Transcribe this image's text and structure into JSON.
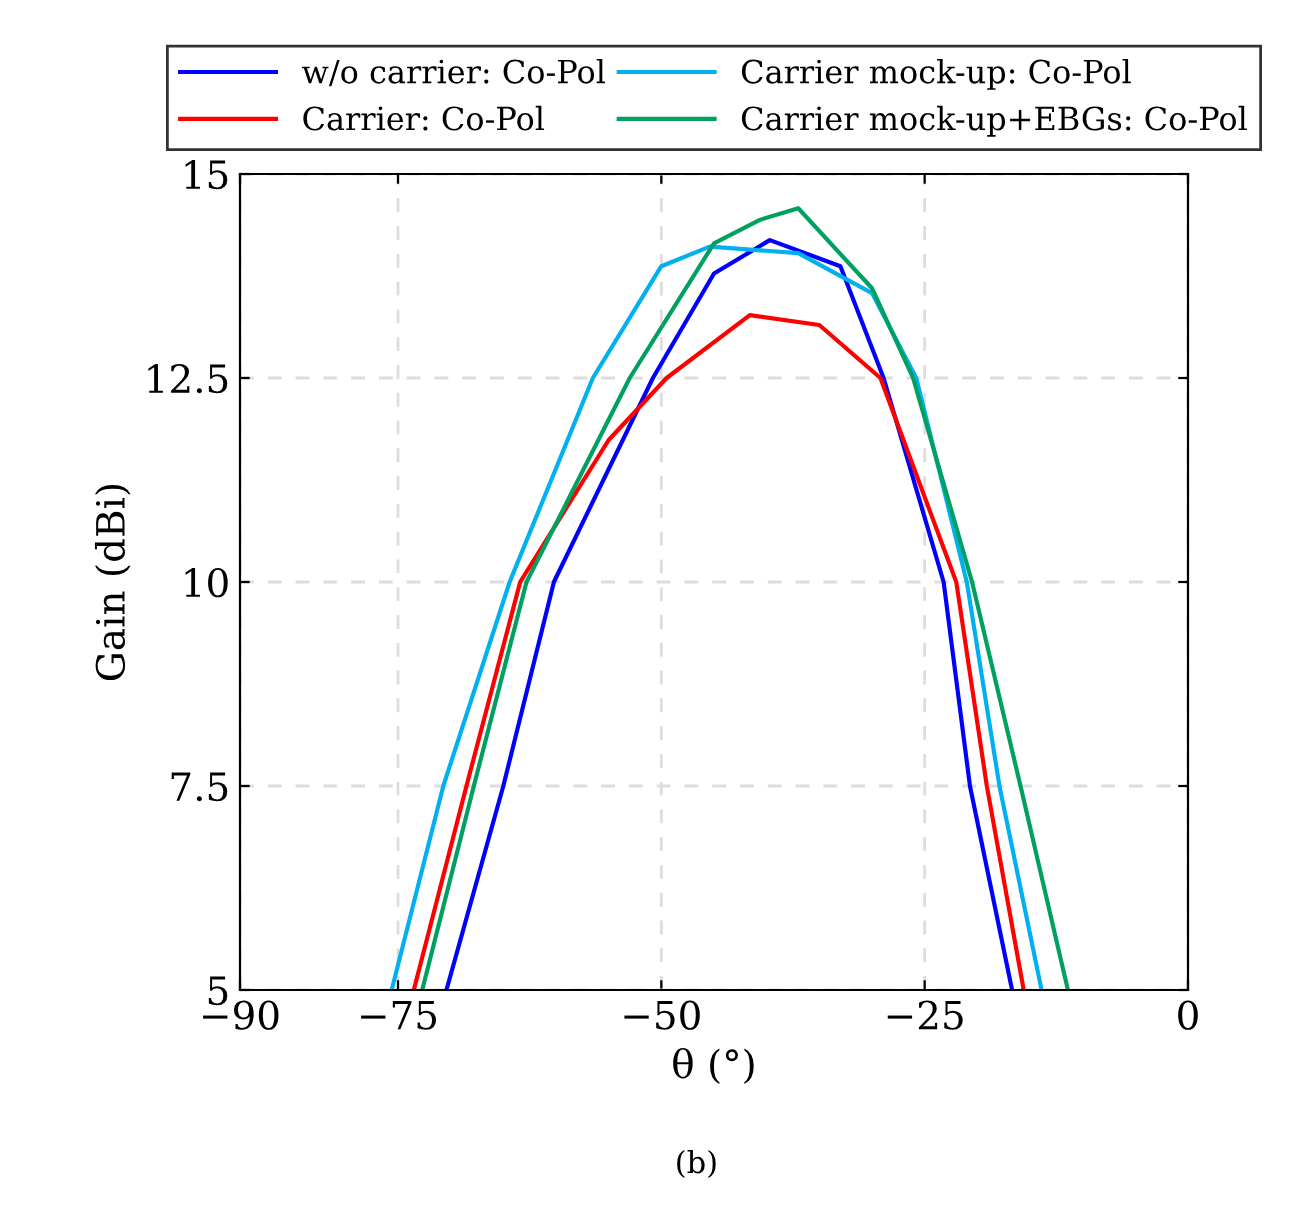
{
  "chart_data": {
    "type": "line",
    "xlabel": "θ (°)",
    "ylabel": "Gain (dBi)",
    "annotations": [
      "(b)"
    ],
    "xlim": [
      -90,
      0
    ],
    "ylim": [
      5,
      15
    ],
    "xticks": [
      {
        "value": -90,
        "label": "−90"
      },
      {
        "value": -75,
        "label": "−75"
      },
      {
        "value": -50,
        "label": "−50"
      },
      {
        "value": -25,
        "label": "−25"
      },
      0
    ],
    "yticks": [
      5,
      7.5,
      10,
      12.5,
      15
    ],
    "grid": true,
    "legend": "top",
    "line_style": "solid",
    "marker": "none",
    "series": [
      {
        "name": "w/o carrier: Co-Pol",
        "color": "#0000ff",
        "x": [
          -70.4,
          -65.0,
          -60.2,
          -50.8,
          -45,
          -39.7,
          -33,
          -28.9,
          -23.2,
          -20.7,
          -16.7
        ],
        "values": [
          5,
          7.5,
          10,
          12.5,
          13.78,
          14.19,
          13.87,
          12.5,
          10,
          7.5,
          5
        ]
      },
      {
        "name": "Carrier: Co-Pol",
        "color": "#ff0000",
        "x": [
          -73.5,
          -68.5,
          -63.4,
          -55,
          -49.5,
          -41.6,
          -35,
          -29.2,
          -22.0,
          -19.1,
          -15.6
        ],
        "values": [
          5,
          7.5,
          10,
          11.74,
          12.5,
          13.27,
          13.15,
          12.5,
          10,
          7.5,
          5
        ]
      },
      {
        "name": "Carrier mock-up: Co-Pol",
        "color": "#00b0f0",
        "x": [
          -75.6,
          -70.7,
          -64.4,
          -56.5,
          -50,
          -45.4,
          -37,
          -30,
          -25.8,
          -21.0,
          -17.9,
          -13.9
        ],
        "values": [
          5,
          7.5,
          10,
          12.5,
          13.87,
          14.11,
          14.03,
          13.54,
          12.5,
          10,
          7.5,
          5
        ]
      },
      {
        "name": "Carrier mock-up+EBGs: Co-Pol",
        "color": "#00a060",
        "x": [
          -72.7,
          -67.8,
          -62.8,
          -53.0,
          -45,
          -40.6,
          -37.0,
          -30,
          -26.1,
          -20.5,
          -15.9,
          -11.4
        ],
        "values": [
          5,
          7.5,
          10,
          12.5,
          14.15,
          14.44,
          14.58,
          13.6,
          12.5,
          10,
          7.5,
          5
        ]
      }
    ]
  }
}
